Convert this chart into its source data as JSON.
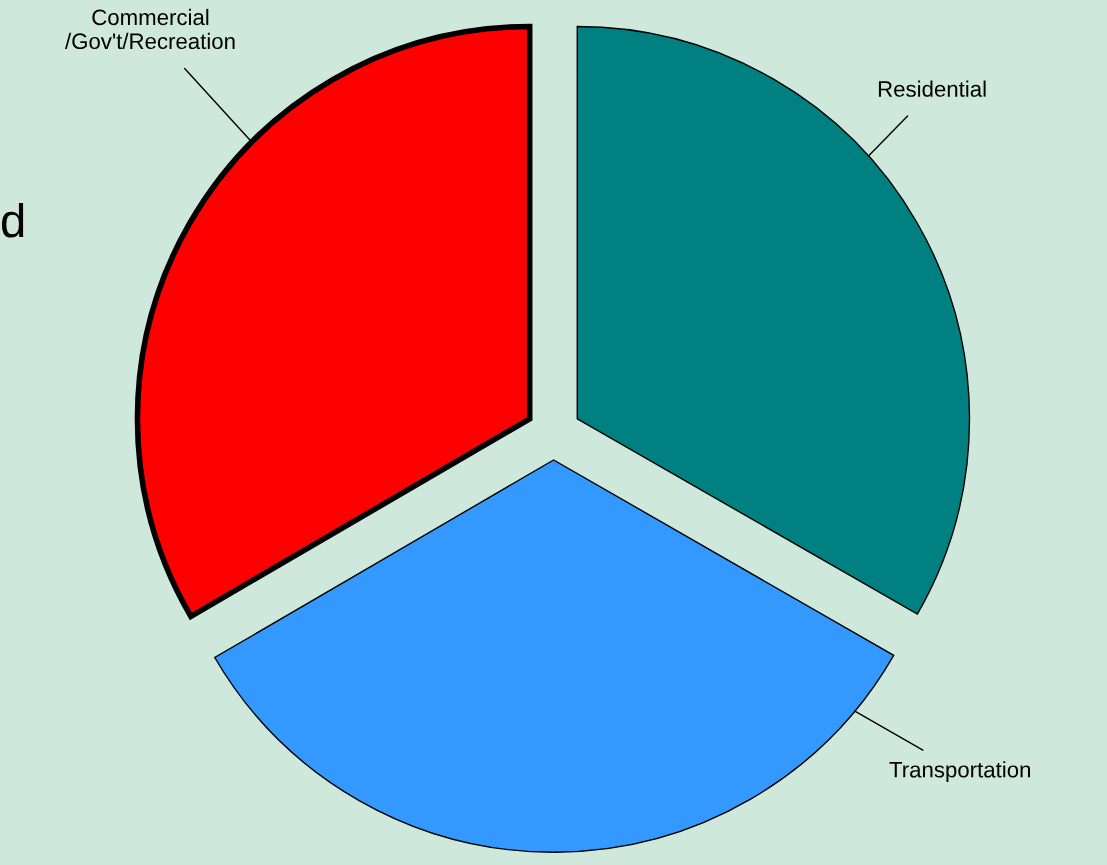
{
  "chart_data": {
    "type": "pie",
    "categories": [
      "Residential",
      "Transportation",
      "Commercial\n/Gov't/Recreation"
    ],
    "values": [
      33.3,
      33.3,
      33.4
    ],
    "colors": [
      "#008080",
      "#3399ff",
      "#ff0000"
    ],
    "annotations": [
      "d"
    ]
  }
}
